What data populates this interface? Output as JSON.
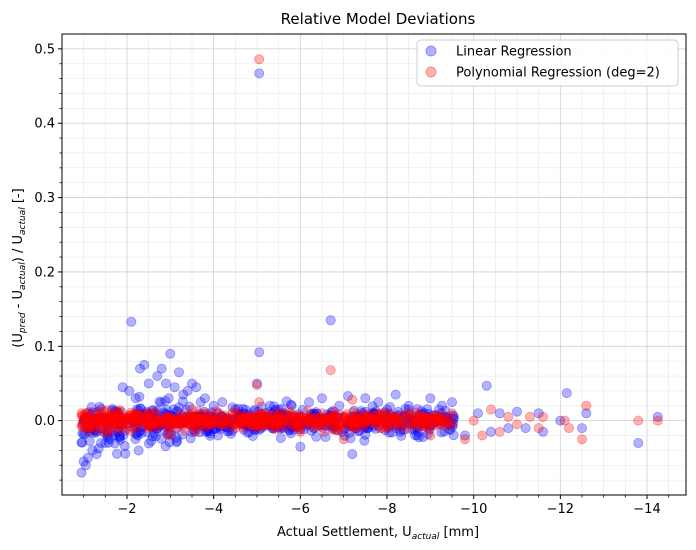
{
  "chart_data": {
    "type": "scatter",
    "title": "Relative Model Deviations",
    "xlabel_main": "Actual Settlement, U",
    "xlabel_sub": "actual",
    "xlabel_suffix": " [mm]",
    "ylabel_parts": {
      "open": "(U",
      "sub1": "pred",
      "mid": " - U",
      "sub2": "actual",
      "close": ") / U",
      "sub3": "actual",
      "suffix": " [-]"
    },
    "x_axis_inverted": true,
    "xlim": [
      -0.5,
      -14.9
    ],
    "ylim": [
      -0.1,
      0.52
    ],
    "x_ticks": [
      -2,
      -4,
      -6,
      -8,
      -10,
      -12,
      -14
    ],
    "x_tick_labels": [
      "−2",
      "−4",
      "−6",
      "−8",
      "−10",
      "−12",
      "−14"
    ],
    "y_ticks": [
      0.0,
      0.1,
      0.2,
      0.3,
      0.4,
      0.5
    ],
    "y_tick_labels": [
      "0.0",
      "0.1",
      "0.2",
      "0.3",
      "0.4",
      "0.5"
    ],
    "grid": true,
    "minor_grid": true,
    "legend_position": "top-right",
    "series": [
      {
        "name": "Linear Regression",
        "color": "#0000ff",
        "alpha": 0.3,
        "band_note": "dense cloud between x=-0.9 and x=-9.5 with y mostly in [-0.045, 0.05]",
        "points": [
          [
            -0.95,
            -0.07
          ],
          [
            -1.0,
            -0.055
          ],
          [
            -1.05,
            -0.06
          ],
          [
            -1.1,
            -0.05
          ],
          [
            -1.2,
            -0.04
          ],
          [
            -1.3,
            -0.045
          ],
          [
            -1.4,
            -0.03
          ],
          [
            -1.5,
            -0.03
          ],
          [
            -1.55,
            -0.02
          ],
          [
            -1.6,
            -0.025
          ],
          [
            -1.7,
            -0.02
          ],
          [
            -1.8,
            -0.015
          ],
          [
            -1.9,
            0.045
          ],
          [
            -2.05,
            0.04
          ],
          [
            -2.1,
            0.133
          ],
          [
            -2.2,
            0.03
          ],
          [
            -2.3,
            0.07
          ],
          [
            -2.4,
            0.075
          ],
          [
            -2.5,
            0.05
          ],
          [
            -2.7,
            0.06
          ],
          [
            -2.8,
            0.07
          ],
          [
            -2.9,
            0.05
          ],
          [
            -3.0,
            0.09
          ],
          [
            -3.1,
            0.045
          ],
          [
            -3.2,
            0.065
          ],
          [
            -3.3,
            0.035
          ],
          [
            -3.4,
            0.04
          ],
          [
            -3.5,
            0.05
          ],
          [
            -3.6,
            0.045
          ],
          [
            -3.7,
            0.025
          ],
          [
            -3.8,
            0.03
          ],
          [
            -4.0,
            0.02
          ],
          [
            -4.2,
            0.025
          ],
          [
            -4.5,
            0.015
          ],
          [
            -4.7,
            0.01
          ],
          [
            -5.0,
            0.05
          ],
          [
            -5.05,
            0.092
          ],
          [
            -5.05,
            0.467
          ],
          [
            -5.3,
            0.02
          ],
          [
            -5.5,
            0.015
          ],
          [
            -5.8,
            0.02
          ],
          [
            -6.0,
            -0.035
          ],
          [
            -6.2,
            0.025
          ],
          [
            -6.5,
            0.03
          ],
          [
            -6.7,
            0.135
          ],
          [
            -6.9,
            0.02
          ],
          [
            -7.1,
            0.033
          ],
          [
            -7.2,
            -0.045
          ],
          [
            -7.5,
            0.03
          ],
          [
            -7.8,
            0.025
          ],
          [
            -8.0,
            0.015
          ],
          [
            -8.2,
            0.035
          ],
          [
            -8.5,
            0.02
          ],
          [
            -8.7,
            -0.02
          ],
          [
            -9.0,
            0.03
          ],
          [
            -9.2,
            0.015
          ],
          [
            -9.5,
            0.025
          ],
          [
            -9.8,
            -0.02
          ],
          [
            -10.1,
            0.01
          ],
          [
            -10.3,
            0.047
          ],
          [
            -10.4,
            -0.015
          ],
          [
            -10.6,
            0.01
          ],
          [
            -10.8,
            -0.01
          ],
          [
            -11.0,
            0.012
          ],
          [
            -11.2,
            -0.01
          ],
          [
            -11.5,
            0.01
          ],
          [
            -11.6,
            -0.015
          ],
          [
            -12.0,
            0.0
          ],
          [
            -12.15,
            0.037
          ],
          [
            -12.5,
            -0.01
          ],
          [
            -12.6,
            0.01
          ],
          [
            -13.8,
            -0.03
          ],
          [
            -14.25,
            0.005
          ]
        ]
      },
      {
        "name": "Polynomial Regression (deg=2)",
        "color": "#ff0000",
        "alpha": 0.3,
        "band_note": "dense cloud between x=-0.9 and x=-9.5 with y mostly in [-0.03, 0.03]",
        "points": [
          [
            -0.95,
            0.01
          ],
          [
            -1.05,
            0.01
          ],
          [
            -1.2,
            0.0
          ],
          [
            -1.4,
            -0.005
          ],
          [
            -1.6,
            0.005
          ],
          [
            -2.0,
            -0.01
          ],
          [
            -2.5,
            0.01
          ],
          [
            -3.0,
            -0.02
          ],
          [
            -3.5,
            0.015
          ],
          [
            -4.0,
            0.005
          ],
          [
            -4.5,
            -0.01
          ],
          [
            -5.0,
            0.048
          ],
          [
            -5.05,
            0.486
          ],
          [
            -5.05,
            0.025
          ],
          [
            -5.5,
            0.01
          ],
          [
            -6.0,
            -0.015
          ],
          [
            -6.5,
            0.01
          ],
          [
            -6.7,
            0.068
          ],
          [
            -7.0,
            -0.025
          ],
          [
            -7.2,
            0.028
          ],
          [
            -7.5,
            0.005
          ],
          [
            -8.0,
            -0.01
          ],
          [
            -8.5,
            0.01
          ],
          [
            -9.0,
            -0.02
          ],
          [
            -9.5,
            0.01
          ],
          [
            -9.8,
            -0.025
          ],
          [
            -10.0,
            0.0
          ],
          [
            -10.2,
            -0.02
          ],
          [
            -10.4,
            0.015
          ],
          [
            -10.6,
            -0.015
          ],
          [
            -10.8,
            0.005
          ],
          [
            -11.0,
            -0.005
          ],
          [
            -11.3,
            0.005
          ],
          [
            -11.5,
            -0.01
          ],
          [
            -11.6,
            0.005
          ],
          [
            -12.1,
            0.0
          ],
          [
            -12.2,
            -0.01
          ],
          [
            -12.5,
            -0.025
          ],
          [
            -12.6,
            0.02
          ],
          [
            -13.8,
            0.0
          ],
          [
            -14.25,
            0.0
          ]
        ]
      }
    ]
  }
}
